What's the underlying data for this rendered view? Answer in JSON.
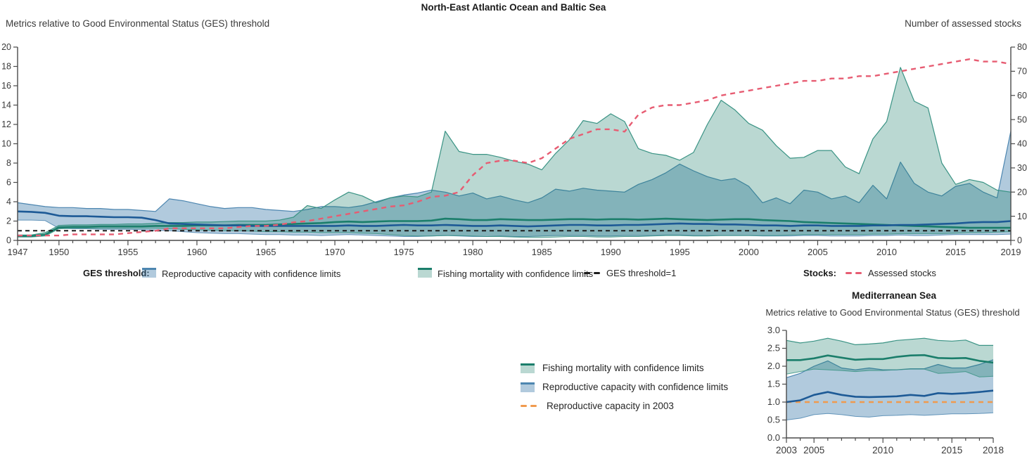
{
  "main_chart": {
    "title": "North-East Atlantic Ocean and Baltic Sea",
    "left_axis_label": "Metrics relative to Good Environmental Status (GES) threshold",
    "right_axis_label": "Number of assessed stocks",
    "legend": {
      "ges_group_label": "GES threshold:",
      "rc_label": "Reproductive capacity with confidence limits",
      "fm_label": "Fishing mortality with confidence limits",
      "ges_line_label": "GES threshold=1",
      "stocks_group_label": "Stocks:",
      "stocks_label": "Assessed stocks"
    }
  },
  "med_chart": {
    "title": "Mediterranean Sea",
    "subtitle": "Metrics relative to Good Environmental Status (GES) threshold",
    "legend": {
      "fm_label": "Fishing mortality with confidence limits",
      "rc_label": "Reproductive capacity with confidence limits",
      "rc2003_label": "Reproductive capacity in 2003"
    }
  },
  "colors": {
    "fm_line": "#1b7e6b",
    "fm_edge": "#3a9384",
    "rc_line": "#1d5a96",
    "rc_fill": "#3d7bab",
    "rc_edge": "#4d86b0",
    "stocks": "#e75c72",
    "ges": "#1c1c1c",
    "rc_2003": "#f09a4e",
    "text": "#3a3a3a",
    "axis": "#4a4a4a"
  },
  "chart_data": [
    {
      "type": "area",
      "title": "North-East Atlantic Ocean and Baltic Sea",
      "xlabel": "",
      "ylabel_left": "Metrics relative to Good Environmental Status (GES) threshold",
      "ylabel_right": "Number of assessed stocks",
      "grid": false,
      "legend_position": "bottom",
      "x_range": [
        1947,
        2019
      ],
      "x_tick_labels": [
        1947,
        1950,
        1955,
        1960,
        1965,
        1970,
        1975,
        1980,
        1985,
        1990,
        1995,
        2000,
        2005,
        2010,
        2015,
        2019
      ],
      "y_left": {
        "min": 0,
        "max": 20,
        "step": 2,
        "decimals": 0
      },
      "y_right": {
        "min": 0,
        "max": 80,
        "step": 10,
        "decimals": 0
      },
      "series": [
        {
          "name": "Reproductive capacity with confidence limits",
          "type": "band",
          "color_key": "rc_fill",
          "edge_key": "rc_edge",
          "fill_opacity": 0.4,
          "upper": [
            3.9,
            3.7,
            3.5,
            3.4,
            3.4,
            3.3,
            3.3,
            3.2,
            3.2,
            3.1,
            3.0,
            4.3,
            4.1,
            3.8,
            3.5,
            3.3,
            3.4,
            3.4,
            3.2,
            3.1,
            3.0,
            3.2,
            3.5,
            3.5,
            3.4,
            3.6,
            4.0,
            4.4,
            4.7,
            4.9,
            5.2,
            5.0,
            4.6,
            4.9,
            4.3,
            4.6,
            4.2,
            3.9,
            4.4,
            5.3,
            5.1,
            5.4,
            5.2,
            5.1,
            5.0,
            5.8,
            6.3,
            7.0,
            7.9,
            7.2,
            6.6,
            6.2,
            6.4,
            5.6,
            3.9,
            4.4,
            3.8,
            5.2,
            5.0,
            4.3,
            4.6,
            3.9,
            5.7,
            4.3,
            8.1,
            5.9,
            5.0,
            4.6,
            5.6,
            5.9,
            5.0,
            4.4,
            11.3
          ],
          "lower": [
            2.1,
            2.1,
            2.05,
            1.25,
            1.2,
            1.2,
            1.15,
            1.15,
            1.15,
            1.1,
            1.05,
            1.0,
            0.9,
            0.8,
            0.75,
            0.7,
            0.7,
            0.65,
            0.6,
            0.6,
            0.55,
            0.55,
            0.5,
            0.55,
            0.6,
            0.55,
            0.5,
            0.45,
            0.4,
            0.4,
            0.45,
            0.5,
            0.45,
            0.4,
            0.4,
            0.45,
            0.4,
            0.4,
            0.45,
            0.5,
            0.5,
            0.5,
            0.45,
            0.45,
            0.5,
            0.5,
            0.5,
            0.55,
            0.55,
            0.5,
            0.5,
            0.5,
            0.5,
            0.5,
            0.45,
            0.45,
            0.45,
            0.5,
            0.5,
            0.45,
            0.45,
            0.45,
            0.5,
            0.5,
            0.55,
            0.5,
            0.5,
            0.55,
            0.6,
            0.6,
            0.6,
            0.6,
            0.65
          ]
        },
        {
          "name": "Fishing mortality with confidence limits",
          "type": "band",
          "color_key": "fm_line",
          "edge_key": "fm_edge",
          "fill_opacity": 0.3,
          "upper": [
            0.55,
            0.55,
            0.8,
            1.55,
            1.6,
            1.6,
            1.65,
            1.65,
            1.7,
            1.7,
            1.75,
            1.85,
            1.85,
            1.9,
            1.9,
            1.95,
            2.0,
            2.0,
            2.0,
            2.1,
            2.4,
            3.6,
            3.3,
            4.2,
            5.0,
            4.6,
            3.9,
            4.4,
            4.6,
            4.5,
            5.0,
            11.3,
            9.2,
            8.9,
            8.9,
            8.6,
            8.2,
            7.9,
            7.3,
            9.0,
            10.4,
            12.4,
            12.1,
            13.1,
            12.3,
            9.5,
            9.0,
            8.8,
            8.3,
            9.1,
            12.0,
            14.5,
            13.5,
            12.1,
            11.4,
            9.8,
            8.5,
            8.6,
            9.3,
            9.3,
            7.6,
            6.9,
            10.5,
            12.3,
            17.9,
            14.4,
            13.7,
            8.0,
            5.8,
            6.3,
            6.0,
            5.2,
            5.0
          ],
          "lower": [
            0.35,
            0.35,
            0.45,
            1.2,
            1.25,
            1.25,
            1.25,
            1.25,
            1.25,
            1.25,
            1.25,
            1.2,
            1.15,
            1.1,
            1.05,
            1.0,
            1.0,
            0.95,
            0.9,
            0.9,
            0.85,
            0.85,
            0.8,
            0.8,
            0.8,
            0.75,
            0.7,
            0.6,
            0.5,
            0.45,
            0.45,
            0.5,
            0.5,
            0.45,
            0.4,
            0.4,
            0.35,
            0.3,
            0.3,
            0.35,
            0.4,
            0.4,
            0.35,
            0.35,
            0.4,
            0.4,
            0.45,
            0.5,
            0.5,
            0.45,
            0.45,
            0.5,
            0.5,
            0.5,
            0.5,
            0.5,
            0.55,
            0.6,
            0.6,
            0.6,
            0.6,
            0.6,
            0.65,
            0.65,
            0.7,
            0.7,
            0.7,
            0.7,
            0.75,
            0.8,
            0.8,
            0.85,
            0.9
          ]
        },
        {
          "name": "Fishing mortality",
          "type": "line",
          "color_key": "fm_line",
          "width": 2.6,
          "values": [
            0.45,
            0.45,
            0.6,
            1.35,
            1.4,
            1.4,
            1.45,
            1.45,
            1.45,
            1.45,
            1.5,
            1.5,
            1.5,
            1.55,
            1.55,
            1.55,
            1.6,
            1.6,
            1.6,
            1.65,
            1.7,
            1.75,
            1.8,
            1.9,
            1.95,
            1.9,
            1.95,
            2.0,
            2.0,
            2.0,
            2.05,
            2.25,
            2.2,
            2.1,
            2.1,
            2.2,
            2.15,
            2.1,
            2.1,
            2.15,
            2.2,
            2.2,
            2.15,
            2.2,
            2.2,
            2.15,
            2.2,
            2.25,
            2.2,
            2.15,
            2.1,
            2.15,
            2.2,
            2.2,
            2.1,
            2.05,
            2.0,
            1.9,
            1.85,
            1.8,
            1.75,
            1.7,
            1.65,
            1.6,
            1.55,
            1.5,
            1.45,
            1.4,
            1.35,
            1.3,
            1.3,
            1.3,
            1.3
          ]
        },
        {
          "name": "Reproductive capacity",
          "type": "line",
          "color_key": "rc_line",
          "width": 2.6,
          "values": [
            3.0,
            2.95,
            2.85,
            2.55,
            2.5,
            2.5,
            2.45,
            2.4,
            2.4,
            2.35,
            2.1,
            1.75,
            1.7,
            1.65,
            1.6,
            1.55,
            1.55,
            1.5,
            1.5,
            1.5,
            1.5,
            1.5,
            1.5,
            1.5,
            1.55,
            1.5,
            1.5,
            1.55,
            1.6,
            1.55,
            1.55,
            1.6,
            1.55,
            1.5,
            1.5,
            1.55,
            1.5,
            1.45,
            1.5,
            1.55,
            1.6,
            1.6,
            1.55,
            1.55,
            1.6,
            1.6,
            1.65,
            1.7,
            1.75,
            1.7,
            1.7,
            1.65,
            1.65,
            1.6,
            1.55,
            1.55,
            1.5,
            1.55,
            1.55,
            1.5,
            1.5,
            1.5,
            1.55,
            1.55,
            1.6,
            1.6,
            1.65,
            1.7,
            1.75,
            1.85,
            1.9,
            1.9,
            2.0
          ]
        },
        {
          "name": "GES threshold=1",
          "type": "line",
          "color_key": "ges",
          "width": 2,
          "dash": "6 5",
          "value_const": 1
        },
        {
          "name": "Assessed stocks",
          "type": "line",
          "color_key": "stocks",
          "width": 2.4,
          "dash": "7 6",
          "axis": "right",
          "values": [
            2,
            2,
            2,
            2,
            2.5,
            2.5,
            2.5,
            2.5,
            3,
            3.5,
            4,
            5,
            5,
            5,
            5,
            5,
            5.5,
            6,
            6,
            6.5,
            7.5,
            8,
            9,
            10,
            11,
            12,
            13,
            14,
            14.5,
            16,
            18,
            18.5,
            20,
            27,
            32,
            33,
            33,
            32,
            34,
            38,
            42,
            44,
            46,
            46,
            45,
            52,
            55,
            56,
            56,
            57,
            58,
            60,
            61,
            62,
            63,
            64,
            65,
            66,
            66,
            67,
            67,
            68,
            68,
            69,
            70,
            71,
            72,
            73,
            74,
            75,
            74,
            74,
            73
          ]
        }
      ]
    },
    {
      "type": "area",
      "title": "Mediterranean Sea",
      "xlabel": "",
      "ylabel_left": "Metrics relative to Good Environmental Status (GES) threshold",
      "grid": false,
      "legend_position": "left",
      "x_range": [
        2003,
        2018
      ],
      "x_tick_labels": [
        2003,
        2005,
        2010,
        2015,
        2018
      ],
      "y_left": {
        "min": 0,
        "max": 3,
        "step": 0.5,
        "decimals": 1
      },
      "series": [
        {
          "name": "Reproductive capacity with confidence limits",
          "type": "band",
          "color_key": "rc_fill",
          "edge_key": "rc_edge",
          "fill_opacity": 0.4,
          "upper": [
            1.68,
            1.8,
            2.0,
            2.15,
            1.95,
            1.9,
            1.95,
            1.9,
            1.9,
            1.93,
            1.93,
            2.05,
            1.95,
            1.95,
            2.05,
            2.18
          ],
          "lower": [
            0.5,
            0.55,
            0.65,
            0.68,
            0.65,
            0.6,
            0.58,
            0.62,
            0.63,
            0.65,
            0.63,
            0.65,
            0.67,
            0.67,
            0.68,
            0.7
          ]
        },
        {
          "name": "Fishing mortality with confidence limits",
          "type": "band",
          "color_key": "fm_line",
          "edge_key": "fm_edge",
          "fill_opacity": 0.3,
          "upper": [
            2.72,
            2.65,
            2.7,
            2.78,
            2.7,
            2.6,
            2.62,
            2.65,
            2.72,
            2.75,
            2.78,
            2.72,
            2.7,
            2.73,
            2.58,
            2.58
          ],
          "lower": [
            1.78,
            1.85,
            1.92,
            1.9,
            1.88,
            1.85,
            1.88,
            1.88,
            1.9,
            1.92,
            1.92,
            1.8,
            1.82,
            1.85,
            1.7,
            1.72
          ]
        },
        {
          "name": "Reproductive capacity in 2003",
          "type": "line",
          "color_key": "rc_2003",
          "width": 2.4,
          "dash": "7 6",
          "value_const": 1
        },
        {
          "name": "Fishing mortality",
          "type": "line",
          "color_key": "fm_line",
          "width": 2.6,
          "values": [
            2.17,
            2.17,
            2.22,
            2.3,
            2.24,
            2.18,
            2.2,
            2.2,
            2.26,
            2.3,
            2.31,
            2.23,
            2.22,
            2.23,
            2.15,
            2.1
          ]
        },
        {
          "name": "Reproductive capacity",
          "type": "line",
          "color_key": "rc_line",
          "width": 2.6,
          "values": [
            1.0,
            1.05,
            1.2,
            1.28,
            1.2,
            1.15,
            1.14,
            1.15,
            1.16,
            1.2,
            1.17,
            1.25,
            1.23,
            1.25,
            1.28,
            1.32
          ]
        }
      ]
    }
  ]
}
